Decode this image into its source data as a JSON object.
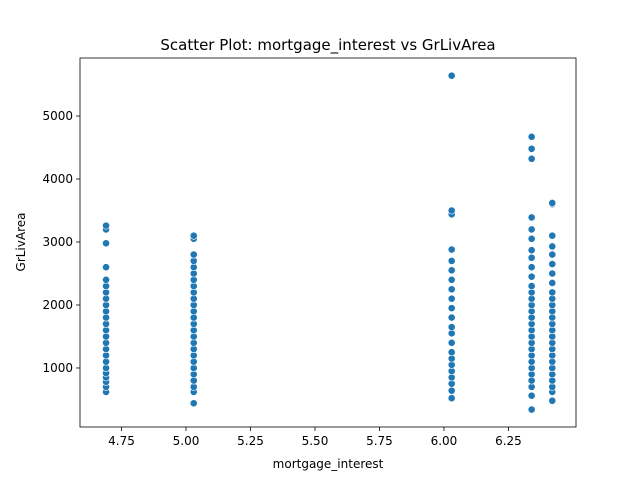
{
  "chart_data": {
    "type": "scatter",
    "title": "Scatter Plot: mortgage_interest vs GrLivArea",
    "x_label": "mortgage_interest",
    "y_label": "GrLivArea",
    "color": "#1f77b4",
    "xlim": [
      4.589,
      6.512
    ],
    "ylim": [
      63,
      5921
    ],
    "xticks": [
      4.75,
      {
        "value": 5,
        "label": "5.00"
      },
      5.25,
      {
        "value": 5.5,
        "label": "5.50"
      },
      5.75,
      {
        "value": 6,
        "label": "6.00"
      },
      6.25
    ],
    "yticks": [
      1000,
      2000,
      3000,
      4000,
      5000
    ],
    "x": [
      4.69,
      4.69,
      4.69,
      4.69,
      4.69,
      4.69,
      4.69,
      4.69,
      4.69,
      4.69,
      4.69,
      4.69,
      4.69,
      4.69,
      4.69,
      4.69,
      4.69,
      4.69,
      4.69,
      4.69,
      4.69,
      4.69,
      4.69,
      4.69,
      5.03,
      5.03,
      5.03,
      5.03,
      5.03,
      5.03,
      5.03,
      5.03,
      5.03,
      5.03,
      5.03,
      5.03,
      5.03,
      5.03,
      5.03,
      5.03,
      5.03,
      5.03,
      5.03,
      5.03,
      5.03,
      5.03,
      5.03,
      5.03,
      5.03,
      5.03,
      6.03,
      6.03,
      6.03,
      6.03,
      6.03,
      6.03,
      6.03,
      6.03,
      6.03,
      6.03,
      6.03,
      6.03,
      6.03,
      6.03,
      6.03,
      6.03,
      6.03,
      6.03,
      6.03,
      6.03,
      6.03,
      6.03,
      6.34,
      6.34,
      6.34,
      6.34,
      6.34,
      6.34,
      6.34,
      6.34,
      6.34,
      6.34,
      6.34,
      6.34,
      6.34,
      6.34,
      6.34,
      6.34,
      6.34,
      6.34,
      6.34,
      6.34,
      6.34,
      6.34,
      6.34,
      6.34,
      6.34,
      6.34,
      6.34,
      6.34,
      6.34,
      6.42,
      6.42,
      6.42,
      6.42,
      6.42,
      6.42,
      6.42,
      6.42,
      6.42,
      6.42,
      6.42,
      6.42,
      6.42,
      6.42,
      6.42,
      6.42,
      6.42,
      6.42,
      6.42,
      6.42,
      6.42,
      6.42,
      6.42,
      6.42,
      6.42,
      6.42
    ],
    "values": [
      620,
      700,
      780,
      850,
      920,
      1000,
      1100,
      1200,
      1300,
      1400,
      1500,
      1600,
      1700,
      1800,
      1900,
      2000,
      2100,
      2200,
      2300,
      2400,
      2600,
      2980,
      3200,
      3260,
      440,
      620,
      700,
      800,
      900,
      1000,
      1100,
      1200,
      1300,
      1400,
      1500,
      1600,
      1700,
      1800,
      1900,
      2000,
      2100,
      2200,
      2300,
      2400,
      2500,
      2600,
      2700,
      2800,
      3050,
      3100,
      520,
      640,
      750,
      850,
      950,
      1050,
      1150,
      1250,
      1400,
      1550,
      1650,
      1800,
      1950,
      2100,
      2250,
      2400,
      2550,
      2700,
      2880,
      3440,
      3500,
      5640,
      340,
      560,
      700,
      800,
      900,
      1000,
      1100,
      1200,
      1300,
      1400,
      1500,
      1600,
      1700,
      1800,
      1900,
      2000,
      2100,
      2200,
      2300,
      2450,
      2600,
      2750,
      2870,
      3050,
      3200,
      3390,
      4320,
      4480,
      4670,
      480,
      620,
      700,
      800,
      900,
      1000,
      1100,
      1200,
      1300,
      1400,
      1500,
      1600,
      1700,
      1800,
      1900,
      2000,
      2100,
      2200,
      2350,
      2500,
      2650,
      2800,
      2930,
      3100,
      3600,
      3620
    ]
  }
}
